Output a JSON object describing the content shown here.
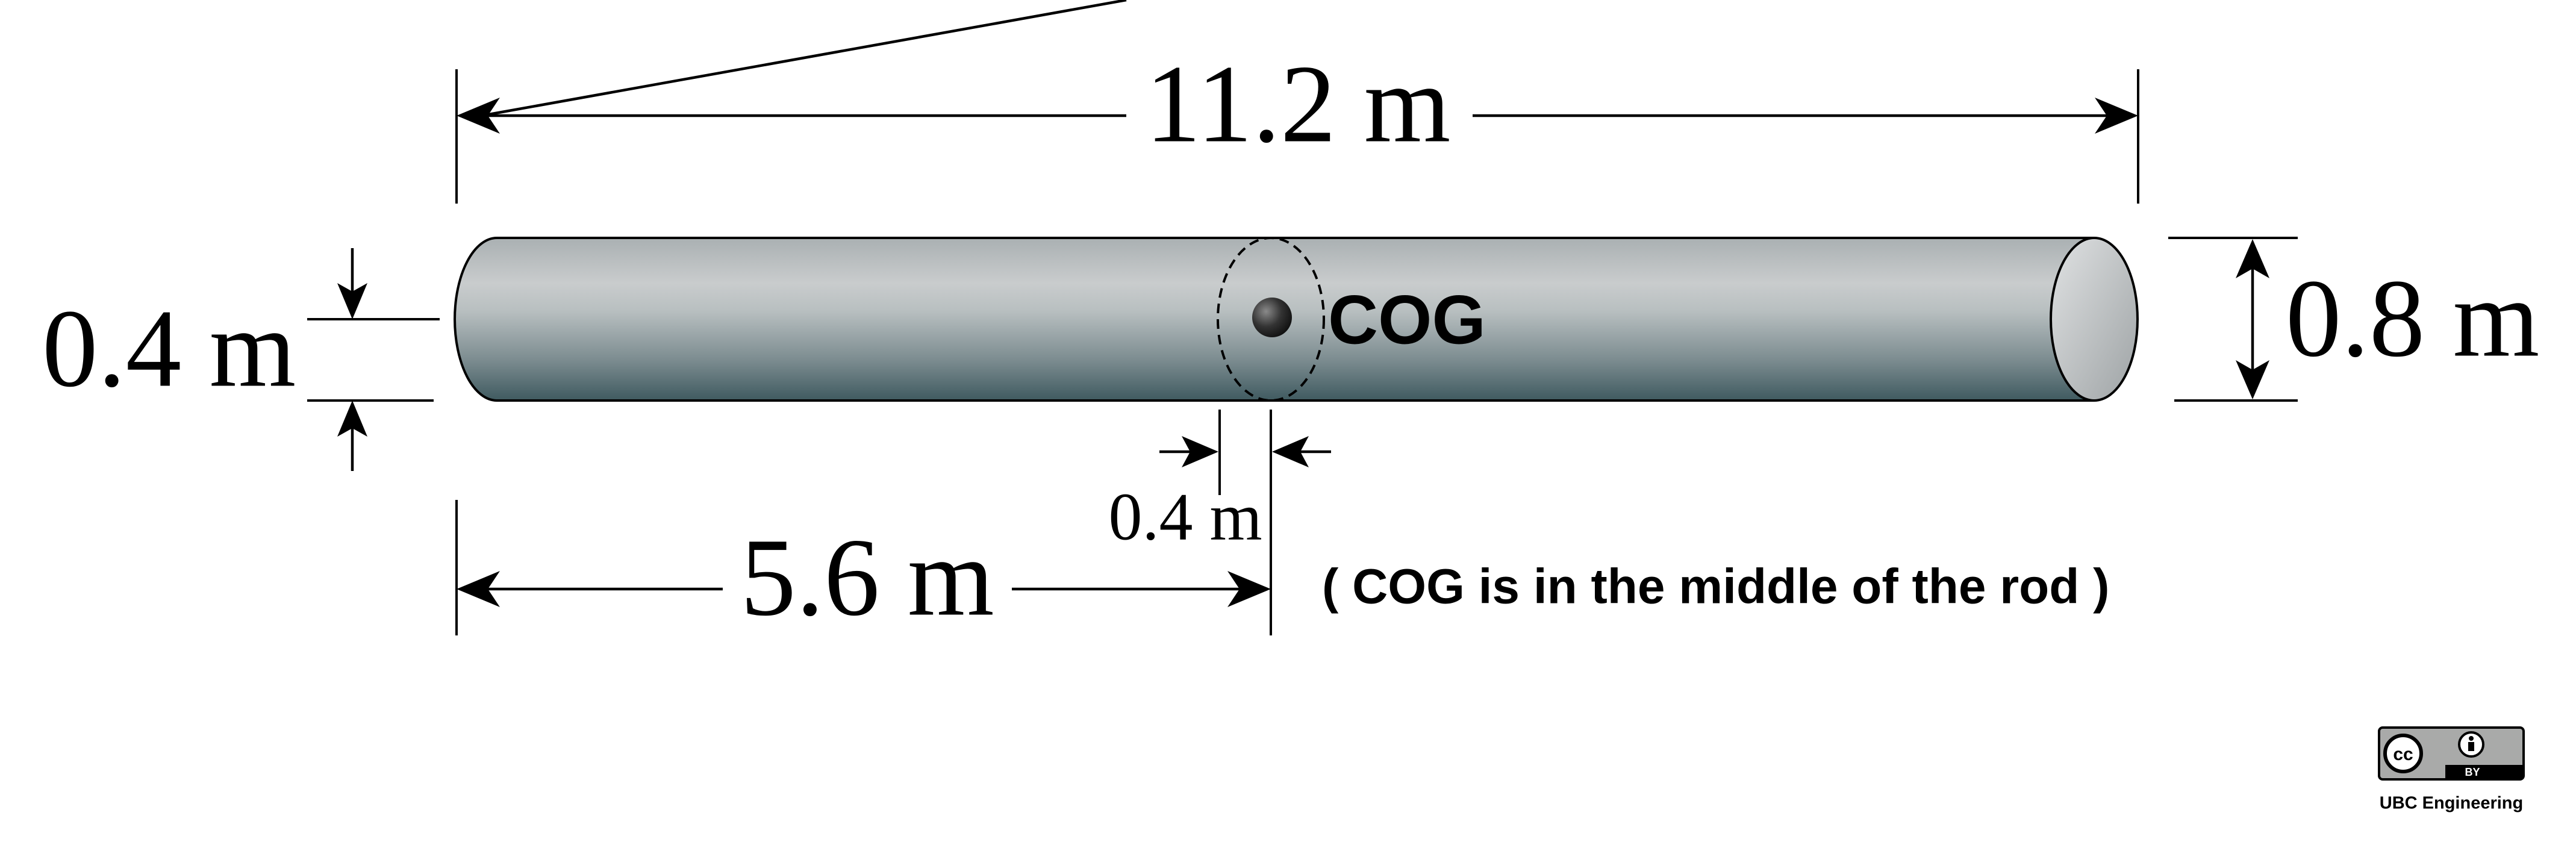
{
  "dimensions": {
    "total_length": "11.2 m",
    "diameter": "0.8 m",
    "radius": "0.4 m",
    "half_length": "5.6 m",
    "cog_half_width": "0.4 m"
  },
  "labels": {
    "cog": "COG",
    "note": "( COG is in the middle of the rod )"
  },
  "license": {
    "badge_cc": "cc",
    "badge_by": "BY",
    "credit": "UBC Engineering"
  },
  "colors": {
    "rod_light": "#c7cacb",
    "rod_dark": "#3f5a60",
    "end_cap": "#c9cbcc",
    "cog_dot": "#222222",
    "badge_bg": "#a9aaa9"
  }
}
